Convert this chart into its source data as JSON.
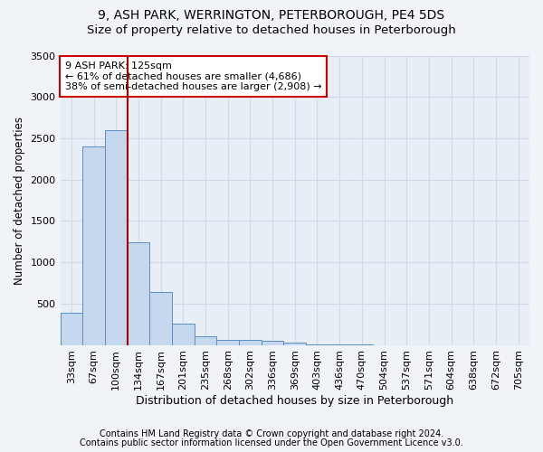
{
  "title1": "9, ASH PARK, WERRINGTON, PETERBOROUGH, PE4 5DS",
  "title2": "Size of property relative to detached houses in Peterborough",
  "xlabel": "Distribution of detached houses by size in Peterborough",
  "ylabel": "Number of detached properties",
  "footnote1": "Contains HM Land Registry data © Crown copyright and database right 2024.",
  "footnote2": "Contains public sector information licensed under the Open Government Licence v3.0.",
  "categories": [
    "33sqm",
    "67sqm",
    "100sqm",
    "134sqm",
    "167sqm",
    "201sqm",
    "235sqm",
    "268sqm",
    "302sqm",
    "336sqm",
    "369sqm",
    "403sqm",
    "436sqm",
    "470sqm",
    "504sqm",
    "537sqm",
    "571sqm",
    "604sqm",
    "638sqm",
    "672sqm",
    "705sqm"
  ],
  "values": [
    390,
    2400,
    2600,
    1240,
    640,
    260,
    100,
    65,
    60,
    50,
    30,
    5,
    2,
    1,
    0,
    0,
    0,
    0,
    0,
    0,
    0
  ],
  "bar_color": "#c5d8ed",
  "bar_edge_color": "#5b8ec4",
  "vline_x": 2.5,
  "vline_color": "#aa0000",
  "annotation_text": "9 ASH PARK: 125sqm\n← 61% of detached houses are smaller (4,686)\n38% of semi-detached houses are larger (2,908) →",
  "annotation_box_edgecolor": "#cc0000",
  "annotation_box_facecolor": "white",
  "ylim": [
    0,
    3500
  ],
  "yticks": [
    0,
    500,
    1000,
    1500,
    2000,
    2500,
    3000,
    3500
  ],
  "bg_color": "#f0f3f8",
  "plot_bg_color": "#e8eef6",
  "grid_color": "#d0d8e8",
  "title1_fontsize": 10,
  "title2_fontsize": 9.5,
  "annot_fontsize": 8,
  "tick_fontsize": 8,
  "xlabel_fontsize": 9,
  "ylabel_fontsize": 8.5,
  "footnote_fontsize": 7
}
